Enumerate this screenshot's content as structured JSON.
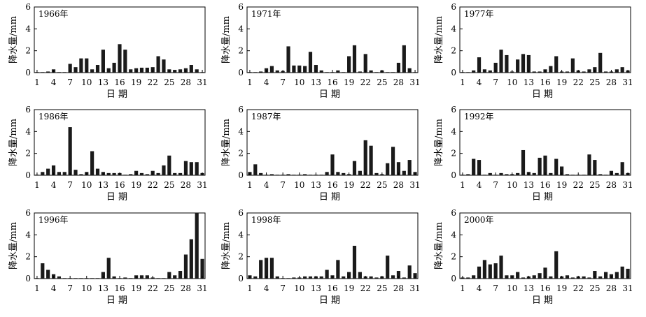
{
  "chart_data": [
    {
      "type": "bar",
      "title": "1966年",
      "xlabel": "日 期",
      "ylabel": "降水量/mm",
      "ylim": [
        0,
        6
      ],
      "yticks": [
        0,
        2,
        4,
        6
      ],
      "x": [
        1,
        2,
        3,
        4,
        5,
        6,
        7,
        8,
        9,
        10,
        11,
        12,
        13,
        14,
        15,
        16,
        17,
        18,
        19,
        20,
        21,
        22,
        23,
        24,
        25,
        26,
        27,
        28,
        29,
        30,
        31
      ],
      "xticks": [
        1,
        4,
        7,
        10,
        13,
        16,
        19,
        22,
        25,
        28,
        31
      ],
      "values": [
        0.05,
        0.05,
        0.1,
        0.3,
        0.05,
        0.05,
        0.8,
        0.5,
        1.3,
        1.3,
        0.3,
        0.7,
        2.1,
        0.4,
        0.9,
        2.6,
        2.1,
        0.3,
        0.4,
        0.45,
        0.45,
        0.5,
        1.5,
        1.2,
        0.3,
        0.25,
        0.3,
        0.4,
        0.7,
        0.3,
        0.05
      ]
    },
    {
      "type": "bar",
      "title": "1971年",
      "xlabel": "日 期",
      "ylabel": "降水量/mm",
      "ylim": [
        0,
        6
      ],
      "yticks": [
        0,
        2,
        4,
        6
      ],
      "x": [
        1,
        2,
        3,
        4,
        5,
        6,
        7,
        8,
        9,
        10,
        11,
        12,
        13,
        14,
        15,
        16,
        17,
        18,
        19,
        20,
        21,
        22,
        23,
        24,
        25,
        26,
        27,
        28,
        29,
        30,
        31
      ],
      "xticks": [
        1,
        4,
        7,
        10,
        13,
        16,
        19,
        22,
        25,
        28,
        31
      ],
      "values": [
        0.05,
        0.05,
        0.1,
        0.4,
        0.6,
        0.2,
        0.15,
        2.4,
        0.65,
        0.65,
        0.6,
        1.9,
        0.7,
        0.2,
        0.05,
        0.05,
        0.2,
        0.05,
        1.5,
        2.5,
        0.1,
        1.7,
        0.2,
        0.05,
        0.2,
        0.05,
        0.05,
        0.9,
        2.5,
        0.4,
        0.05
      ]
    },
    {
      "type": "bar",
      "title": "1977年",
      "xlabel": "日 期",
      "ylabel": "降水量/mm",
      "ylim": [
        0,
        6
      ],
      "yticks": [
        0,
        2,
        4,
        6
      ],
      "x": [
        1,
        2,
        3,
        4,
        5,
        6,
        7,
        8,
        9,
        10,
        11,
        12,
        13,
        14,
        15,
        16,
        17,
        18,
        19,
        20,
        21,
        22,
        23,
        24,
        25,
        26,
        27,
        28,
        29,
        30,
        31
      ],
      "xticks": [
        1,
        4,
        7,
        10,
        13,
        16,
        19,
        22,
        25,
        28,
        31
      ],
      "values": [
        0.05,
        0.05,
        0.2,
        1.4,
        0.3,
        0.2,
        0.9,
        2.1,
        1.6,
        0.1,
        1.2,
        1.7,
        1.6,
        0.1,
        0.1,
        0.3,
        0.6,
        1.5,
        0.1,
        0.1,
        1.3,
        0.2,
        0.1,
        0.3,
        0.5,
        1.8,
        0.1,
        0.1,
        0.3,
        0.5,
        0.2
      ]
    },
    {
      "type": "bar",
      "title": "1986年",
      "xlabel": "日 期",
      "ylabel": "降水量/mm",
      "ylim": [
        0,
        6
      ],
      "yticks": [
        0,
        2,
        4,
        6
      ],
      "x": [
        1,
        2,
        3,
        4,
        5,
        6,
        7,
        8,
        9,
        10,
        11,
        12,
        13,
        14,
        15,
        16,
        17,
        18,
        19,
        20,
        21,
        22,
        23,
        24,
        25,
        26,
        27,
        28,
        29,
        30,
        31
      ],
      "xticks": [
        1,
        4,
        7,
        10,
        13,
        16,
        19,
        22,
        25,
        28,
        31
      ],
      "values": [
        0.05,
        0.3,
        0.6,
        0.9,
        0.3,
        0.3,
        4.4,
        0.5,
        0.1,
        0.3,
        2.2,
        0.6,
        0.3,
        0.2,
        0.2,
        0.2,
        0.05,
        0.1,
        0.4,
        0.2,
        0.1,
        0.4,
        0.2,
        0.9,
        1.8,
        0.2,
        0.2,
        1.3,
        1.2,
        1.2,
        0.2
      ]
    },
    {
      "type": "bar",
      "title": "1987年",
      "xlabel": "日 期",
      "ylabel": "降水量/mm",
      "ylim": [
        0,
        6
      ],
      "yticks": [
        0,
        2,
        4,
        6
      ],
      "x": [
        1,
        2,
        3,
        4,
        5,
        6,
        7,
        8,
        9,
        10,
        11,
        12,
        13,
        14,
        15,
        16,
        17,
        18,
        19,
        20,
        21,
        22,
        23,
        24,
        25,
        26,
        27,
        28,
        29,
        30,
        31
      ],
      "xticks": [
        1,
        4,
        7,
        10,
        13,
        16,
        19,
        22,
        25,
        28,
        31
      ],
      "values": [
        0.3,
        1.0,
        0.2,
        0.05,
        0.1,
        0.05,
        0.05,
        0.1,
        0.05,
        0.05,
        0.1,
        0.05,
        0.05,
        0.05,
        0.3,
        1.9,
        0.3,
        0.2,
        0.1,
        1.3,
        0.4,
        3.2,
        2.7,
        0.2,
        0.1,
        1.1,
        2.6,
        1.2,
        0.4,
        1.4,
        0.3
      ]
    },
    {
      "type": "bar",
      "title": "1992年",
      "xlabel": "日 期",
      "ylabel": "降水量/mm",
      "ylim": [
        0,
        6
      ],
      "yticks": [
        0,
        2,
        4,
        6
      ],
      "x": [
        1,
        2,
        3,
        4,
        5,
        6,
        7,
        8,
        9,
        10,
        11,
        12,
        13,
        14,
        15,
        16,
        17,
        18,
        19,
        20,
        21,
        22,
        23,
        24,
        25,
        26,
        27,
        28,
        29,
        30,
        31
      ],
      "xticks": [
        1,
        4,
        7,
        10,
        13,
        16,
        19,
        22,
        25,
        28,
        31
      ],
      "values": [
        0.05,
        0.1,
        1.5,
        1.4,
        0.05,
        0.2,
        0.05,
        0.2,
        0.1,
        0.1,
        0.2,
        2.3,
        0.3,
        0.2,
        1.6,
        1.8,
        0.2,
        1.5,
        0.8,
        0.1,
        0.05,
        0.05,
        0.05,
        1.9,
        1.4,
        0.1,
        0.05,
        0.4,
        0.2,
        1.2,
        0.2
      ]
    },
    {
      "type": "bar",
      "title": "1996年",
      "xlabel": "日 期",
      "ylabel": "降水量/mm",
      "ylim": [
        0,
        6
      ],
      "yticks": [
        0,
        2,
        4,
        6
      ],
      "x": [
        1,
        2,
        3,
        4,
        5,
        6,
        7,
        8,
        9,
        10,
        11,
        12,
        13,
        14,
        15,
        16,
        17,
        18,
        19,
        20,
        21,
        22,
        23,
        24,
        25,
        26,
        27,
        28,
        29,
        30,
        31
      ],
      "xticks": [
        1,
        4,
        7,
        10,
        13,
        16,
        19,
        22,
        25,
        28,
        31
      ],
      "values": [
        0.05,
        1.4,
        0.8,
        0.4,
        0.2,
        0.05,
        0.05,
        0.05,
        0.05,
        0.05,
        0.05,
        0.05,
        0.6,
        1.9,
        0.2,
        0.05,
        0.1,
        0.05,
        0.3,
        0.3,
        0.3,
        0.1,
        0.05,
        0.05,
        0.6,
        0.3,
        0.7,
        2.2,
        3.6,
        6.0,
        1.8
      ]
    },
    {
      "type": "bar",
      "title": "1998年",
      "xlabel": "日 期",
      "ylabel": "降水量/mm",
      "ylim": [
        0,
        6
      ],
      "yticks": [
        0,
        2,
        4,
        6
      ],
      "x": [
        1,
        2,
        3,
        4,
        5,
        6,
        7,
        8,
        9,
        10,
        11,
        12,
        13,
        14,
        15,
        16,
        17,
        18,
        19,
        20,
        21,
        22,
        23,
        24,
        25,
        26,
        27,
        28,
        29,
        30,
        31
      ],
      "xticks": [
        1,
        4,
        7,
        10,
        13,
        16,
        19,
        22,
        25,
        28,
        31
      ],
      "values": [
        0.3,
        0.2,
        1.7,
        1.9,
        1.9,
        0.2,
        0.05,
        0.05,
        0.1,
        0.1,
        0.2,
        0.2,
        0.2,
        0.2,
        0.8,
        0.3,
        1.7,
        0.2,
        0.6,
        3.0,
        0.6,
        0.2,
        0.2,
        0.1,
        0.2,
        2.1,
        0.3,
        0.7,
        0.1,
        1.2,
        0.5
      ]
    },
    {
      "type": "bar",
      "title": "2000年",
      "xlabel": "日 期",
      "ylabel": "降水量/mm",
      "ylim": [
        0,
        6
      ],
      "yticks": [
        0,
        2,
        4,
        6
      ],
      "x": [
        1,
        2,
        3,
        4,
        5,
        6,
        7,
        8,
        9,
        10,
        11,
        12,
        13,
        14,
        15,
        16,
        17,
        18,
        19,
        20,
        21,
        22,
        23,
        24,
        25,
        26,
        27,
        28,
        29,
        30,
        31
      ],
      "xticks": [
        1,
        4,
        7,
        10,
        13,
        16,
        19,
        22,
        25,
        28,
        31
      ],
      "values": [
        0.1,
        0.1,
        0.3,
        1.1,
        1.7,
        1.3,
        1.4,
        2.1,
        0.3,
        0.3,
        0.6,
        0.1,
        0.2,
        0.3,
        0.5,
        1.0,
        0.2,
        2.5,
        0.2,
        0.3,
        0.1,
        0.2,
        0.2,
        0.1,
        0.7,
        0.2,
        0.6,
        0.4,
        0.6,
        1.1,
        0.9
      ]
    }
  ]
}
